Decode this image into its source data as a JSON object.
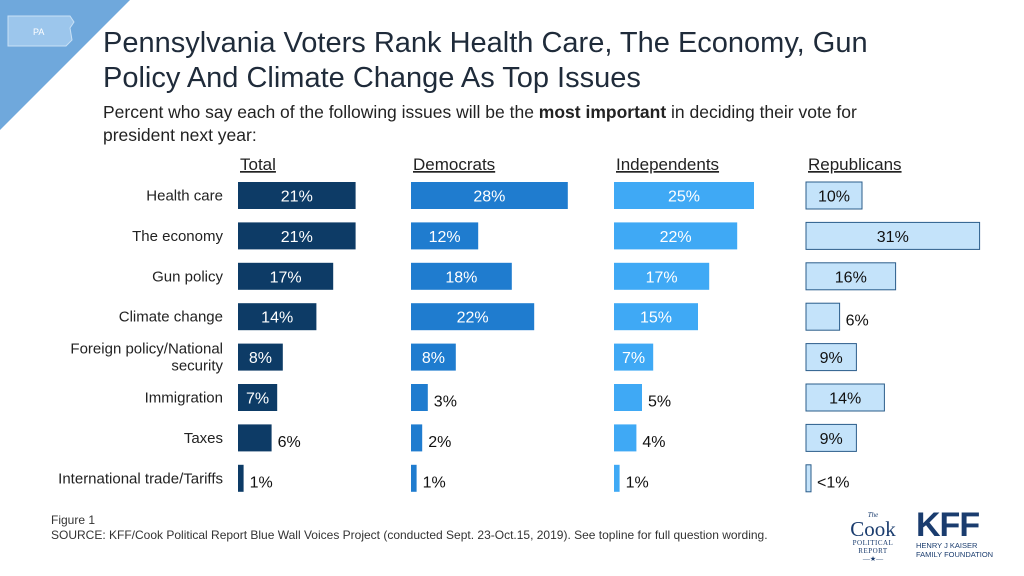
{
  "badge": {
    "state": "PA"
  },
  "title": {
    "line1": "Pennsylvania Voters Rank Health Care, The Economy, Gun",
    "line2": "Policy And Climate Change As Top Issues"
  },
  "subtitle": {
    "line1_pre": "Percent who say each of the following issues will be the ",
    "line1_bold": "most important",
    "line1_post": " in deciding their vote for",
    "line2": "president next year:"
  },
  "chart_data": {
    "type": "bar",
    "orientation": "horizontal",
    "categories": [
      "Health care",
      "The economy",
      "Gun policy",
      "Climate change",
      [
        "Foreign policy/National",
        "security"
      ],
      "Immigration",
      "Taxes",
      "International trade/Tariffs"
    ],
    "series": [
      {
        "name": "Total",
        "color": "#0d3b66",
        "values": [
          21,
          21,
          17,
          14,
          8,
          7,
          6,
          1
        ],
        "labels": [
          "21%",
          "21%",
          "17%",
          "14%",
          "8%",
          "7%",
          "6%",
          "1%"
        ]
      },
      {
        "name": "Democrats",
        "color": "#1f7ccf",
        "values": [
          28,
          12,
          18,
          22,
          8,
          3,
          2,
          1
        ],
        "labels": [
          "28%",
          "12%",
          "18%",
          "22%",
          "8%",
          "3%",
          "2%",
          "1%"
        ]
      },
      {
        "name": "Independents",
        "color": "#3fa9f5",
        "values": [
          25,
          22,
          17,
          15,
          7,
          5,
          4,
          1
        ],
        "labels": [
          "25%",
          "22%",
          "17%",
          "15%",
          "7%",
          "5%",
          "4%",
          "1%"
        ]
      },
      {
        "name": "Republicans",
        "color": "#c4e3fa",
        "values": [
          10,
          31,
          16,
          6,
          9,
          14,
          9,
          0.5
        ],
        "labels": [
          "10%",
          "31%",
          "16%",
          "6%",
          "9%",
          "14%",
          "9%",
          "<1%"
        ]
      }
    ]
  },
  "footer": {
    "figure": "Figure 1",
    "source": "SOURCE: KFF/Cook Political Report Blue Wall Voices Project (conducted Sept. 23-Oct.15, 2019). See topline for full question wording."
  },
  "logos": {
    "cook": {
      "the": "The",
      "name": "Cook",
      "sub1": "POLITICAL",
      "sub2": "REPORT"
    },
    "kff": {
      "mark": "KFF",
      "sub1": "HENRY J KAISER",
      "sub2": "FAMILY FOUNDATION"
    }
  }
}
